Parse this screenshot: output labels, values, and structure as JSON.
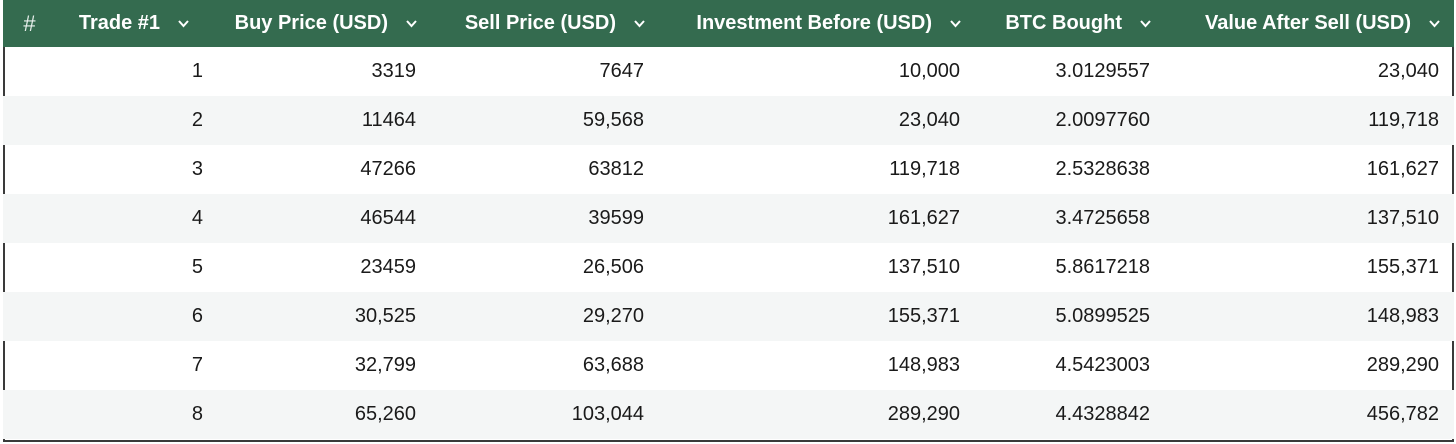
{
  "table": {
    "header": {
      "hash": "#",
      "columns": [
        {
          "label": "Trade #1"
        },
        {
          "label": "Buy Price (USD)"
        },
        {
          "label": "Sell Price (USD)"
        },
        {
          "label": "Investment Before (USD)"
        },
        {
          "label": "BTC Bought"
        },
        {
          "label": "Value After Sell (USD)"
        }
      ]
    },
    "rows": [
      {
        "trade": "1",
        "buy": "3319",
        "sell": "7647",
        "investment": "10,000",
        "btc": "3.0129557",
        "value": "23,040"
      },
      {
        "trade": "2",
        "buy": "11464",
        "sell": "59,568",
        "investment": "23,040",
        "btc": "2.0097760",
        "value": "119,718"
      },
      {
        "trade": "3",
        "buy": "47266",
        "sell": "63812",
        "investment": "119,718",
        "btc": "2.5328638",
        "value": "161,627"
      },
      {
        "trade": "4",
        "buy": "46544",
        "sell": "39599",
        "investment": "161,627",
        "btc": "3.4725658",
        "value": "137,510"
      },
      {
        "trade": "5",
        "buy": "23459",
        "sell": "26,506",
        "investment": "137,510",
        "btc": "5.8617218",
        "value": "155,371"
      },
      {
        "trade": "6",
        "buy": "30,525",
        "sell": "29,270",
        "investment": "155,371",
        "btc": "5.0899525",
        "value": "148,983"
      },
      {
        "trade": "7",
        "buy": "32,799",
        "sell": "63,688",
        "investment": "148,983",
        "btc": "4.5423003",
        "value": "289,290"
      },
      {
        "trade": "8",
        "buy": "65,260",
        "sell": "103,044",
        "investment": "289,290",
        "btc": "4.4328842",
        "value": "456,782"
      }
    ]
  },
  "colors": {
    "header_bg": "#346b4f",
    "header_text": "#ffffff",
    "row_alt_bg": "#f4f6f6"
  },
  "icons": {
    "sort": "chevron-down-icon"
  }
}
